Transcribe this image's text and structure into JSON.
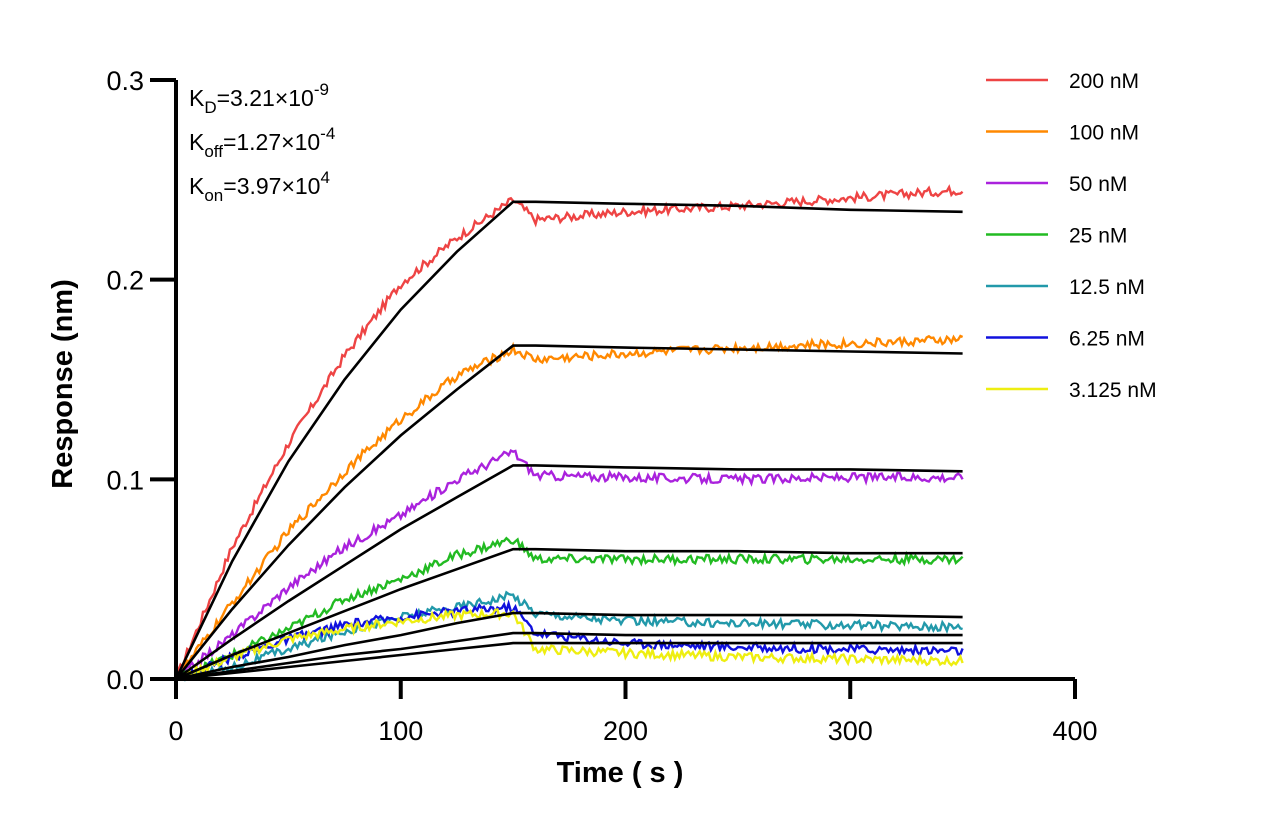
{
  "chart_data": {
    "type": "line",
    "title": "",
    "xlabel": "Time ( s )",
    "ylabel": "Response (nm)",
    "xlim": [
      0,
      400
    ],
    "ylim": [
      0,
      0.3
    ],
    "x_ticks": [
      0,
      100,
      200,
      300,
      400
    ],
    "y_ticks": [
      0.0,
      0.1,
      0.2,
      0.3
    ],
    "x_tick_labels": [
      "0",
      "100",
      "200",
      "300",
      "400"
    ],
    "y_tick_labels": [
      "0.0",
      "0.1",
      "0.2",
      "0.3"
    ],
    "grid": false,
    "legend_position": "top-right",
    "association_end_time": 150,
    "annotations": [
      {
        "sym": "K",
        "sub": "D",
        "text": "=3.21×10",
        "sup": "-9"
      },
      {
        "sym": "K",
        "sub": "off",
        "text": "=1.27×10",
        "sup": "-4"
      },
      {
        "sym": "K",
        "sub": "on",
        "text": "=3.97×10",
        "sup": "4"
      }
    ],
    "series": [
      {
        "name": "200 nM",
        "color": "#ee4444",
        "x": [
          0,
          25,
          50,
          75,
          100,
          125,
          150,
          160,
          200,
          250,
          300,
          350
        ],
        "y": [
          0,
          0.066,
          0.118,
          0.162,
          0.198,
          0.221,
          0.24,
          0.23,
          0.234,
          0.237,
          0.241,
          0.245
        ],
        "fit_y": [
          0,
          0.059,
          0.109,
          0.15,
          0.185,
          0.214,
          0.239,
          0.239,
          0.238,
          0.237,
          0.235,
          0.234
        ]
      },
      {
        "name": "100 nM",
        "color": "#ff8800",
        "x": [
          0,
          25,
          50,
          75,
          100,
          125,
          150,
          160,
          200,
          250,
          300,
          350
        ],
        "y": [
          0,
          0.038,
          0.074,
          0.104,
          0.13,
          0.152,
          0.165,
          0.16,
          0.163,
          0.166,
          0.168,
          0.17
        ],
        "fit_y": [
          0,
          0.035,
          0.067,
          0.096,
          0.122,
          0.145,
          0.167,
          0.167,
          0.166,
          0.165,
          0.164,
          0.163
        ]
      },
      {
        "name": "50 nM",
        "color": "#aa22dd",
        "x": [
          0,
          25,
          50,
          75,
          100,
          125,
          150,
          160,
          200,
          250,
          300,
          350
        ],
        "y": [
          0,
          0.022,
          0.046,
          0.066,
          0.082,
          0.1,
          0.114,
          0.102,
          0.101,
          0.1,
          0.101,
          0.101
        ],
        "fit_y": [
          0,
          0.02,
          0.039,
          0.057,
          0.075,
          0.091,
          0.107,
          0.107,
          0.106,
          0.105,
          0.105,
          0.104
        ]
      },
      {
        "name": "25 nM",
        "color": "#22bb22",
        "x": [
          0,
          25,
          50,
          75,
          100,
          125,
          150,
          160,
          200,
          250,
          300,
          350
        ],
        "y": [
          0,
          0.012,
          0.025,
          0.04,
          0.05,
          0.062,
          0.07,
          0.06,
          0.06,
          0.06,
          0.06,
          0.06
        ],
        "fit_y": [
          0,
          0.012,
          0.023,
          0.034,
          0.045,
          0.055,
          0.065,
          0.065,
          0.064,
          0.064,
          0.063,
          0.063
        ]
      },
      {
        "name": "12.5 nM",
        "color": "#2299aa",
        "x": [
          0,
          25,
          50,
          75,
          100,
          125,
          150,
          160,
          200,
          250,
          300,
          350
        ],
        "y": [
          0,
          0.006,
          0.015,
          0.024,
          0.031,
          0.036,
          0.042,
          0.033,
          0.029,
          0.028,
          0.027,
          0.026
        ],
        "fit_y": [
          0,
          0.006,
          0.011,
          0.017,
          0.022,
          0.028,
          0.033,
          0.033,
          0.032,
          0.032,
          0.032,
          0.031
        ]
      },
      {
        "name": "6.25 nM",
        "color": "#1111dd",
        "x": [
          0,
          25,
          50,
          75,
          100,
          125,
          150,
          160,
          200,
          250,
          300,
          350
        ],
        "y": [
          0,
          0.011,
          0.02,
          0.027,
          0.031,
          0.034,
          0.036,
          0.023,
          0.018,
          0.016,
          0.015,
          0.014
        ],
        "fit_y": [
          0,
          0.004,
          0.008,
          0.012,
          0.015,
          0.019,
          0.023,
          0.023,
          0.022,
          0.022,
          0.022,
          0.022
        ]
      },
      {
        "name": "3.125 nM",
        "color": "#eeee11",
        "x": [
          0,
          25,
          50,
          75,
          100,
          125,
          150,
          160,
          200,
          250,
          300,
          350
        ],
        "y": [
          0,
          0.011,
          0.02,
          0.025,
          0.029,
          0.032,
          0.033,
          0.015,
          0.013,
          0.011,
          0.01,
          0.009
        ],
        "fit_y": [
          0,
          0.003,
          0.006,
          0.009,
          0.012,
          0.015,
          0.018,
          0.018,
          0.018,
          0.018,
          0.018,
          0.018
        ]
      }
    ]
  }
}
